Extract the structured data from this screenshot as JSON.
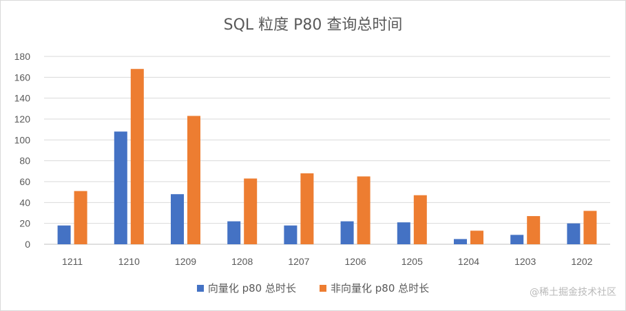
{
  "chart_data": {
    "type": "bar",
    "title": "SQL 粒度 P80 查询总时间",
    "categories": [
      "1211",
      "1210",
      "1209",
      "1208",
      "1207",
      "1206",
      "1205",
      "1204",
      "1203",
      "1202"
    ],
    "series": [
      {
        "name": "向量化 p80 总时长",
        "color": "#4472c4",
        "values": [
          18,
          108,
          48,
          22,
          18,
          22,
          21,
          5,
          9,
          20
        ]
      },
      {
        "name": "非向量化 p80 总时长",
        "color": "#ed7d31",
        "values": [
          51,
          168,
          123,
          63,
          68,
          65,
          47,
          13,
          27,
          32
        ]
      }
    ],
    "ylim": [
      0,
      180
    ],
    "yticks": [
      0,
      20,
      40,
      60,
      80,
      100,
      120,
      140,
      160,
      180
    ],
    "grid": true,
    "legend_position": "bottom"
  },
  "watermark": "@稀土掘金技术社区"
}
